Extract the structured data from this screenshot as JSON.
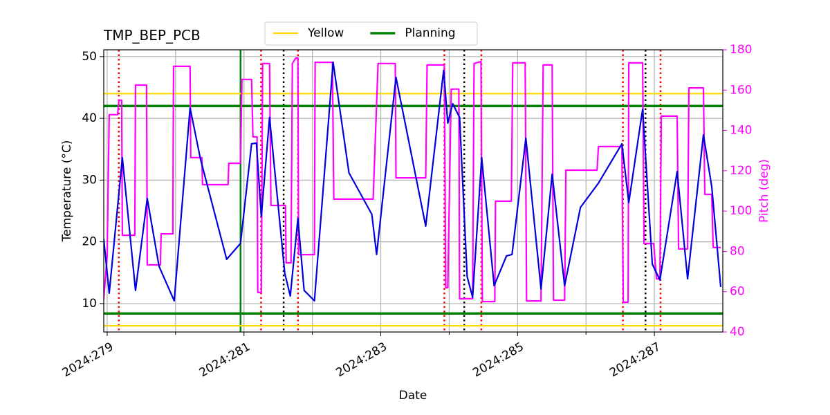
{
  "chart_data": {
    "type": "line",
    "title": "TMP_BEP_PCB",
    "xlabel": "Date",
    "ylabel": "Temperature (°C)",
    "y2label": "Pitch (deg)",
    "y2color": "#ff00ff",
    "xlim": [
      278.95,
      288.0
    ],
    "xticks": [
      {
        "value": 279,
        "label": "2024:279"
      },
      {
        "value": 281,
        "label": "2024:281"
      },
      {
        "value": 283,
        "label": "2024:283"
      },
      {
        "value": 285,
        "label": "2024:285"
      },
      {
        "value": 287,
        "label": "2024:287"
      }
    ],
    "x_minor_ticks": [
      280,
      282,
      284,
      286
    ],
    "ylim": [
      5.4,
      51.1
    ],
    "yticks": [
      10,
      20,
      30,
      40,
      50
    ],
    "y2lim": [
      40,
      180
    ],
    "y2ticks": [
      40,
      60,
      80,
      100,
      120,
      140,
      160,
      180
    ],
    "grid": true,
    "legend": "upper center",
    "limit_lines": [
      {
        "name": "Yellow",
        "color": "#ffd700",
        "values": [
          44.0,
          6.4
        ]
      },
      {
        "name": "Planning",
        "color": "#008000",
        "values": [
          42.0,
          8.4
        ]
      }
    ],
    "vlines": [
      {
        "color": "#008000",
        "style": "solid",
        "x": [
          280.95
        ]
      },
      {
        "color": "#ff0000",
        "style": "dotted",
        "x": [
          279.17,
          281.25,
          281.79,
          283.93,
          284.47,
          286.54,
          287.09
        ]
      },
      {
        "color": "#000000",
        "style": "dotted",
        "x": [
          281.58,
          284.22,
          286.87
        ]
      }
    ],
    "series": [
      {
        "color": "#0000dd",
        "axis": "y",
        "x": [
          278.949,
          279.03,
          279.222,
          279.414,
          279.586,
          279.758,
          279.98,
          280.212,
          280.364,
          280.747,
          280.949,
          281.111,
          281.182,
          281.253,
          281.374,
          281.596,
          281.677,
          281.788,
          281.879,
          282.03,
          282.303,
          282.535,
          282.869,
          282.939,
          283.222,
          283.657,
          283.919,
          283.98,
          284.051,
          284.152,
          284.263,
          284.343,
          284.475,
          284.657,
          284.838,
          284.919,
          285.121,
          285.343,
          285.505,
          285.687,
          285.919,
          286.182,
          286.525,
          286.626,
          286.828,
          286.97,
          287.081,
          287.333,
          287.485,
          287.717,
          287.838,
          287.97
        ],
        "values": [
          20.53,
          11.68,
          33.64,
          12.13,
          27.03,
          16.05,
          10.45,
          41.71,
          33.42,
          17.17,
          19.75,
          35.88,
          35.99,
          24.12,
          40.14,
          14.93,
          11.23,
          23.78,
          12.13,
          10.45,
          49.1,
          31.18,
          24.45,
          17.96,
          46.64,
          22.55,
          47.76,
          39.24,
          42.38,
          40.14,
          14.37,
          11.01,
          33.64,
          12.91,
          17.73,
          17.96,
          36.78,
          12.35,
          30.95,
          12.91,
          25.57,
          29.5,
          35.88,
          26.36,
          41.48,
          16.39,
          13.81,
          31.4,
          14.03,
          37.34,
          28.94,
          12.69
        ]
      },
      {
        "color": "#ff00ff",
        "axis": "y2",
        "x": [
          278.949,
          279.0,
          279.03,
          279.152,
          279.172,
          279.212,
          279.222,
          279.404,
          279.414,
          279.576,
          279.586,
          279.778,
          279.788,
          279.96,
          279.97,
          280.212,
          280.222,
          280.384,
          280.394,
          280.768,
          280.778,
          280.949,
          280.97,
          281.111,
          281.131,
          281.192,
          281.202,
          281.253,
          281.273,
          281.374,
          281.394,
          281.606,
          281.616,
          281.687,
          281.707,
          281.758,
          281.788,
          281.798,
          282.03,
          282.04,
          282.293,
          282.313,
          282.889,
          282.96,
          283.212,
          283.222,
          283.657,
          283.677,
          283.929,
          283.949,
          283.98,
          284.03,
          284.141,
          284.152,
          284.343,
          284.364,
          284.465,
          284.485,
          284.667,
          284.677,
          284.909,
          284.929,
          285.111,
          285.131,
          285.343,
          285.374,
          285.505,
          285.525,
          285.687,
          285.707,
          286.162,
          286.182,
          286.525,
          286.545,
          286.616,
          286.626,
          286.828,
          286.848,
          286.99,
          287.03,
          287.081,
          287.101,
          287.333,
          287.354,
          287.485,
          287.505,
          287.717,
          287.737,
          287.838,
          287.859,
          287.97
        ],
        "values": [
          56.1,
          77.7,
          147.8,
          147.8,
          155.0,
          155.0,
          88.0,
          88.0,
          162.5,
          162.5,
          73.3,
          73.3,
          88.7,
          88.7,
          171.8,
          171.8,
          126.5,
          126.5,
          113.1,
          113.1,
          123.7,
          123.7,
          165.3,
          165.3,
          136.8,
          136.8,
          59.6,
          59.6,
          173.2,
          173.2,
          102.8,
          102.8,
          74.3,
          74.3,
          173.2,
          175.9,
          175.9,
          78.4,
          78.4,
          173.8,
          173.8,
          105.9,
          105.9,
          173.2,
          173.2,
          116.5,
          116.5,
          172.5,
          172.5,
          62.0,
          62.0,
          160.5,
          160.5,
          56.5,
          56.5,
          173.2,
          174.2,
          55.1,
          55.1,
          104.9,
          104.9,
          173.5,
          173.5,
          55.4,
          55.4,
          172.5,
          172.5,
          55.8,
          55.8,
          120.3,
          120.3,
          132.0,
          132.0,
          54.8,
          54.8,
          173.5,
          173.5,
          83.9,
          83.9,
          66.4,
          66.4,
          147.1,
          147.1,
          81.2,
          81.2,
          161.1,
          161.1,
          108.3,
          108.3,
          81.9,
          81.9
        ]
      }
    ]
  }
}
